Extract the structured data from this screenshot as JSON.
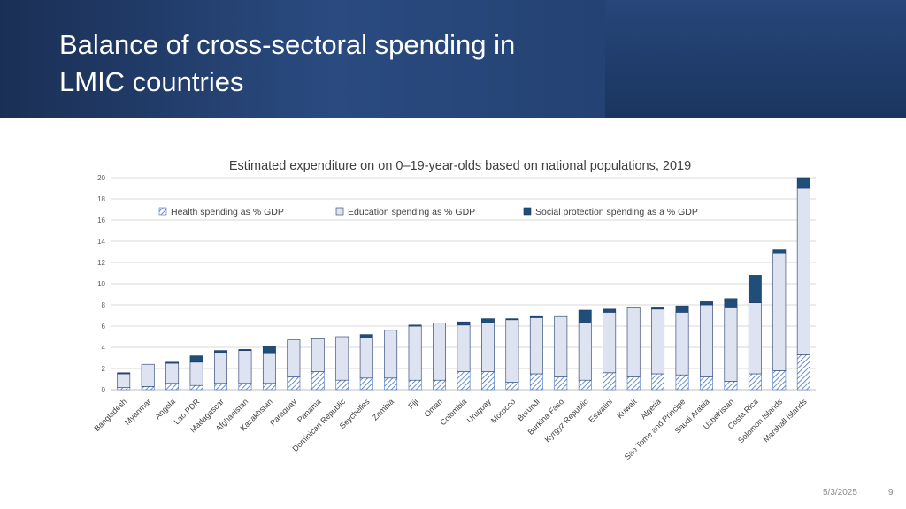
{
  "slide": {
    "title_line1": "Balance of cross-sectoral spending in",
    "title_line2": "LMIC countries",
    "date": "5/3/2025",
    "page_number": "9"
  },
  "colors": {
    "header_bg": "#1b3660",
    "health": "#4472c4",
    "education": "#dde3f0",
    "social": "#1f4e79"
  },
  "chart_data": {
    "type": "bar",
    "stacked": true,
    "title": "Estimated expenditure on on 0–19-year-olds based on national populations, 2019",
    "xlabel": "",
    "ylabel": "",
    "ylim": [
      0,
      20
    ],
    "yticks": [
      0,
      2,
      4,
      6,
      8,
      10,
      12,
      14,
      16,
      18,
      20
    ],
    "grid": true,
    "legend_position": "top",
    "categories": [
      "Bangladesh",
      "Myanmar",
      "Angola",
      "Lao PDR",
      "Madagascar",
      "Afghanistan",
      "Kazakhstan",
      "Paraguay",
      "Panama",
      "Dominican Republic",
      "Seychelles",
      "Zambia",
      "Fiji",
      "Oman",
      "Colombia",
      "Uruguay",
      "Morocco",
      "Burundi",
      "Burkina Faso",
      "Kyrgyz Republic",
      "Eswatini",
      "Kuwait",
      "Algeria",
      "Sao Tome and Principe",
      "Saudi Arabia",
      "Uzbekistan",
      "Costa Rica",
      "Solomon Islands",
      "Marshall Islands"
    ],
    "series": [
      {
        "name": "Health spending as % GDP",
        "pattern": "hatch",
        "values": [
          0.2,
          0.3,
          0.6,
          0.4,
          0.6,
          0.6,
          0.6,
          1.2,
          1.7,
          0.9,
          1.1,
          1.1,
          0.9,
          0.9,
          1.7,
          1.7,
          0.7,
          1.5,
          1.2,
          0.9,
          1.6,
          1.2,
          1.5,
          1.4,
          1.2,
          0.8,
          1.5,
          1.8,
          3.3
        ]
      },
      {
        "name": "Education spending as % GDP",
        "pattern": "solid-light",
        "values": [
          1.3,
          2.1,
          1.9,
          2.2,
          2.9,
          3.1,
          2.8,
          3.5,
          3.1,
          4.1,
          3.8,
          4.5,
          5.1,
          5.4,
          4.4,
          4.6,
          5.9,
          5.3,
          5.7,
          5.4,
          5.7,
          6.6,
          6.1,
          5.9,
          6.8,
          7.0,
          6.7,
          11.1,
          15.7
        ]
      },
      {
        "name": "Social protection spending as a % GDP",
        "pattern": "solid-dark",
        "values": [
          0.1,
          0.0,
          0.1,
          0.6,
          0.2,
          0.1,
          0.7,
          0.0,
          0.0,
          0.0,
          0.3,
          0.0,
          0.1,
          0.0,
          0.3,
          0.4,
          0.1,
          0.1,
          0.0,
          1.2,
          0.3,
          0.0,
          0.2,
          0.6,
          0.3,
          0.8,
          2.6,
          0.3,
          1.0
        ]
      }
    ]
  }
}
